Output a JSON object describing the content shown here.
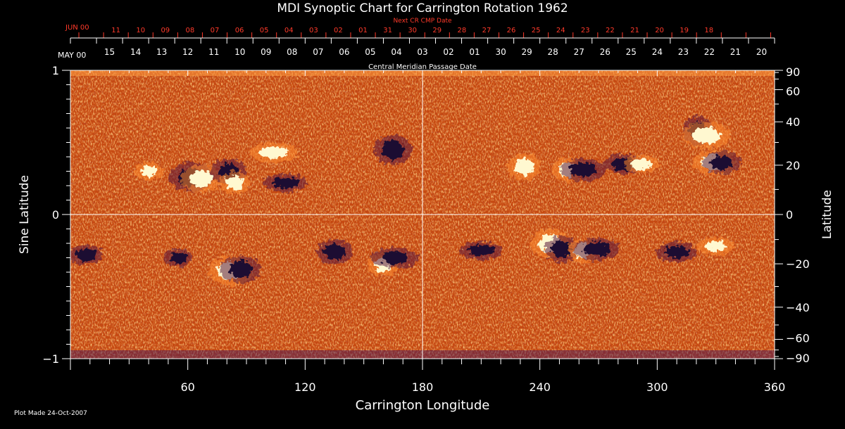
{
  "chart_data": {
    "type": "heatmap",
    "title": "MDI Synoptic Chart for Carrington Rotation 1962",
    "xlabel": "Carrington Longitude",
    "ylabel_left": "Sine Latitude",
    "ylabel_right": "Latitude",
    "xlim": [
      0,
      360
    ],
    "ylim": [
      -1,
      1
    ],
    "grid": false,
    "x_ticks": [
      60,
      120,
      180,
      240,
      300,
      360
    ],
    "left_y_ticks": [
      -1,
      0,
      1
    ],
    "right_y_ticks": [
      -90,
      -60,
      -40,
      -20,
      0,
      20,
      40,
      60,
      90
    ],
    "guide_lines": [
      {
        "axis": "x",
        "value": 180
      },
      {
        "axis": "y",
        "value": 0
      }
    ],
    "cmp_axis": {
      "label": "Central Meridian Passage Date",
      "start_label": "MAY 00",
      "dates": [
        "15",
        "14",
        "13",
        "12",
        "11",
        "10",
        "09",
        "08",
        "07",
        "06",
        "05",
        "04",
        "03",
        "02",
        "01",
        "30",
        "29",
        "28",
        "27",
        "26",
        "25",
        "24",
        "23",
        "22",
        "21",
        "20"
      ]
    },
    "next_cr_axis": {
      "label": "Next CR CMP Date",
      "start_label": "JUN 00",
      "dates": [
        "11",
        "10",
        "09",
        "08",
        "07",
        "06",
        "05",
        "04",
        "03",
        "02",
        "01",
        "31",
        "30",
        "29",
        "28",
        "27",
        "26",
        "25",
        "24",
        "23",
        "22",
        "21",
        "20",
        "19",
        "18"
      ]
    },
    "active_regions": [
      {
        "lon": 40,
        "sinlat": 0.3,
        "polarity": "positive"
      },
      {
        "lon": 62,
        "sinlat": 0.26,
        "polarity": "negative"
      },
      {
        "lon": 67,
        "sinlat": 0.25,
        "polarity": "positive"
      },
      {
        "lon": 81,
        "sinlat": 0.3,
        "polarity": "negative"
      },
      {
        "lon": 84,
        "sinlat": 0.22,
        "polarity": "positive"
      },
      {
        "lon": 104,
        "sinlat": 0.43,
        "polarity": "positive"
      },
      {
        "lon": 110,
        "sinlat": 0.22,
        "polarity": "negative"
      },
      {
        "lon": 165,
        "sinlat": 0.45,
        "polarity": "negative"
      },
      {
        "lon": 232,
        "sinlat": 0.33,
        "polarity": "positive"
      },
      {
        "lon": 254,
        "sinlat": 0.31,
        "polarity": "positive"
      },
      {
        "lon": 262,
        "sinlat": 0.31,
        "polarity": "negative"
      },
      {
        "lon": 283,
        "sinlat": 0.35,
        "polarity": "negative"
      },
      {
        "lon": 292,
        "sinlat": 0.35,
        "polarity": "positive"
      },
      {
        "lon": 321,
        "sinlat": 0.58,
        "polarity": "negative"
      },
      {
        "lon": 325,
        "sinlat": 0.55,
        "polarity": "positive"
      },
      {
        "lon": 329,
        "sinlat": 0.36,
        "polarity": "positive"
      },
      {
        "lon": 333,
        "sinlat": 0.36,
        "polarity": "negative"
      },
      {
        "lon": 8,
        "sinlat": -0.28,
        "polarity": "negative"
      },
      {
        "lon": 55,
        "sinlat": -0.3,
        "polarity": "negative"
      },
      {
        "lon": 82,
        "sinlat": -0.39,
        "polarity": "positive"
      },
      {
        "lon": 87,
        "sinlat": -0.38,
        "polarity": "negative"
      },
      {
        "lon": 135,
        "sinlat": -0.26,
        "polarity": "negative"
      },
      {
        "lon": 160,
        "sinlat": -0.35,
        "polarity": "positive"
      },
      {
        "lon": 166,
        "sinlat": -0.3,
        "polarity": "negative"
      },
      {
        "lon": 210,
        "sinlat": -0.25,
        "polarity": "negative"
      },
      {
        "lon": 245,
        "sinlat": -0.2,
        "polarity": "positive"
      },
      {
        "lon": 251,
        "sinlat": -0.24,
        "polarity": "negative"
      },
      {
        "lon": 262,
        "sinlat": -0.25,
        "polarity": "positive"
      },
      {
        "lon": 269,
        "sinlat": -0.24,
        "polarity": "negative"
      },
      {
        "lon": 310,
        "sinlat": -0.26,
        "polarity": "negative"
      },
      {
        "lon": 330,
        "sinlat": -0.22,
        "polarity": "positive"
      }
    ],
    "colors": {
      "background": "#000000",
      "field_base": "#c84a10",
      "field_light": "#ff8a30",
      "positive": "#fff8d0",
      "negative": "#1a0830",
      "axes": "#ffffff",
      "next_cr": "#ff3a2a"
    }
  },
  "footer": {
    "plot_made": "Plot Made 24-Oct-2007"
  }
}
